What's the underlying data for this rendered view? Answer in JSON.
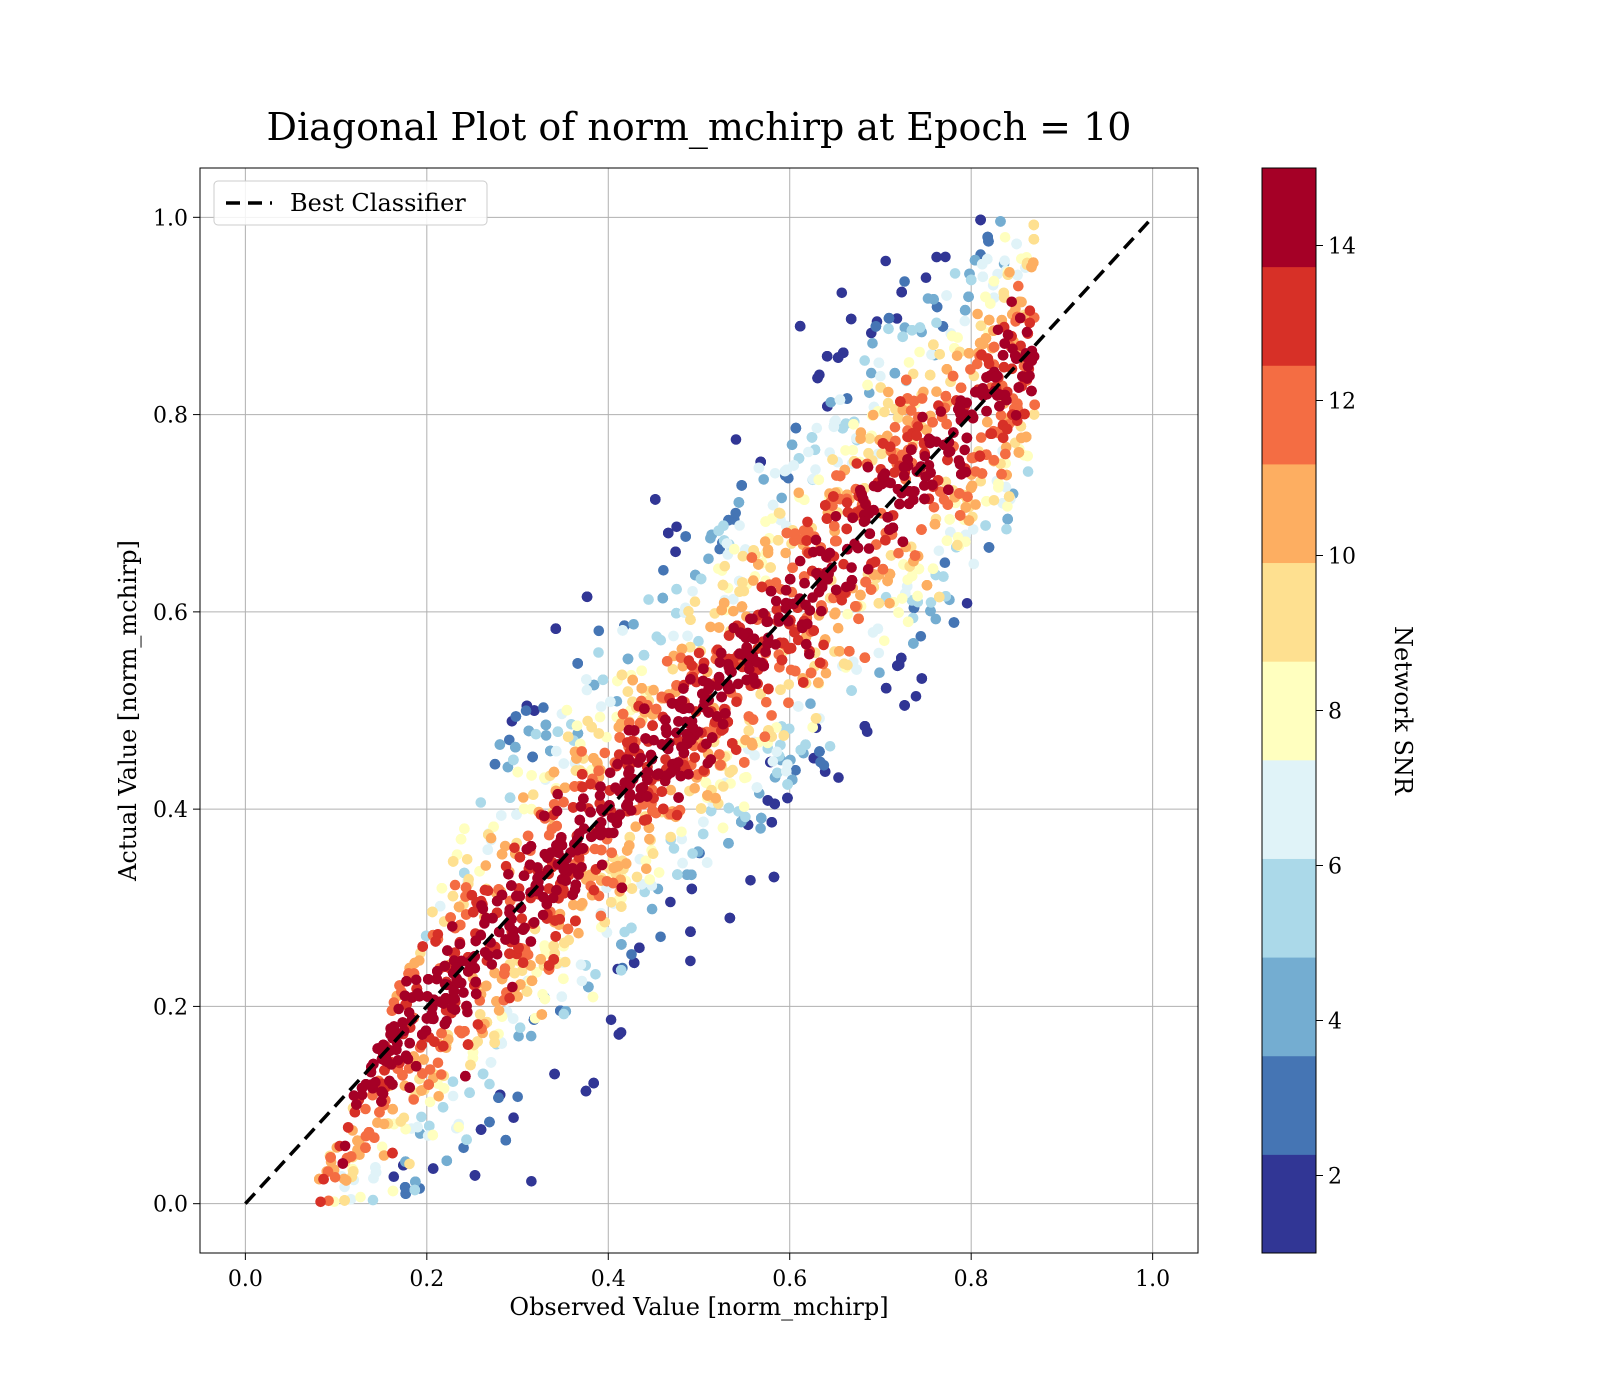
{
  "chart_data": {
    "type": "scatter",
    "title": "Diagonal Plot of norm_mchirp at Epoch = 10",
    "xlabel": "Observed Value [norm_mchirp]",
    "ylabel": "Actual Value [norm_mchirp]",
    "xlim": [
      -0.05,
      1.05
    ],
    "ylim": [
      -0.05,
      1.05
    ],
    "xticks": [
      "0.0",
      "0.2",
      "0.4",
      "0.6",
      "0.8",
      "1.0"
    ],
    "yticks": [
      "0.0",
      "0.2",
      "0.4",
      "0.6",
      "0.8",
      "1.0"
    ],
    "grid": true,
    "legend_position": "top-left",
    "series": [
      {
        "name": "Best Classifier",
        "kind": "dashed-line",
        "color": "#000000",
        "x": [
          0.0,
          1.0
        ],
        "y": [
          0.0,
          1.0
        ]
      }
    ],
    "scatter_description": "dense cloud of points along the diagonal, colored by Network SNR (high SNR near diagonal, low SNR at upper-left and lower-right edges)",
    "colorbar": {
      "label": "Network SNR",
      "range": [
        1,
        15
      ],
      "ticks": [
        "2",
        "4",
        "6",
        "8",
        "10",
        "12",
        "14"
      ],
      "colors": [
        "#313695",
        "#4575b4",
        "#74add1",
        "#abd9e9",
        "#e0f3f8",
        "#ffffbf",
        "#fee090",
        "#fdae61",
        "#f46d43",
        "#d73027",
        "#a50026"
      ]
    }
  }
}
